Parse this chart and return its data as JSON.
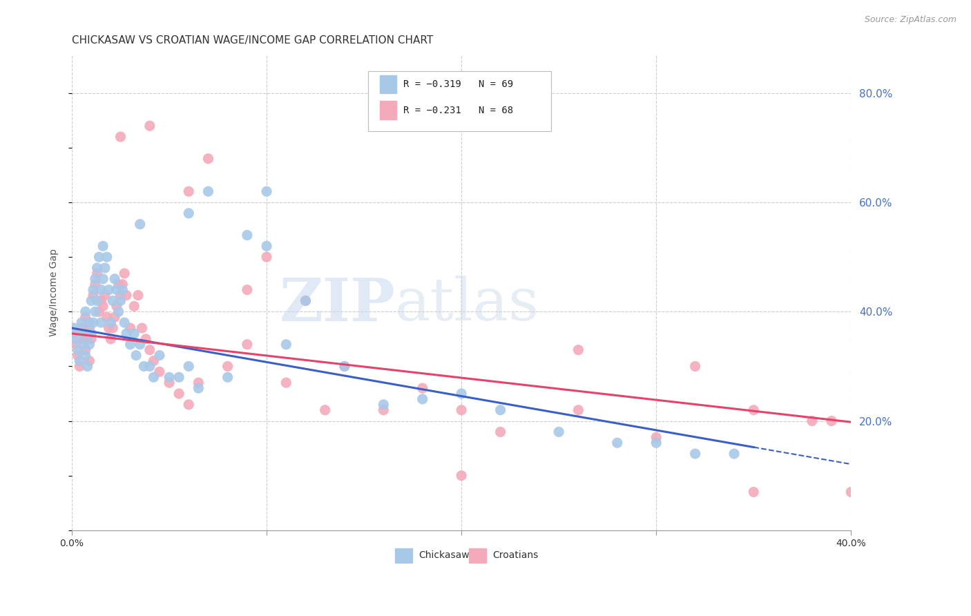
{
  "title": "CHICKASAW VS CROATIAN WAGE/INCOME GAP CORRELATION CHART",
  "source_text": "Source: ZipAtlas.com",
  "ylabel": "Wage/Income Gap",
  "watermark_zip": "ZIP",
  "watermark_atlas": "atlas",
  "xlim": [
    0.0,
    0.4
  ],
  "ylim": [
    0.0,
    0.87
  ],
  "ytick_positions": [
    0.2,
    0.4,
    0.6,
    0.8
  ],
  "ytick_labels": [
    "20.0%",
    "40.0%",
    "60.0%",
    "80.0%"
  ],
  "chickasaw_color": "#a8c8e8",
  "croatian_color": "#f4aaba",
  "chickasaw_line_color": "#3a5fc8",
  "croatian_line_color": "#e8426a",
  "legend_R1": "R = −0.319",
  "legend_N1": "N = 69",
  "legend_R2": "R = −0.231",
  "legend_N2": "N = 68",
  "line1_x0": 0.0,
  "line1_y0": 0.37,
  "line1_x1": 0.35,
  "line1_y1": 0.152,
  "line1_dash_x0": 0.35,
  "line1_dash_y0": 0.152,
  "line1_dash_x1": 0.4,
  "line1_dash_y1": 0.121,
  "line2_x0": 0.0,
  "line2_y0": 0.36,
  "line2_x1": 0.4,
  "line2_y1": 0.198,
  "chickasaw_x": [
    0.001,
    0.002,
    0.003,
    0.004,
    0.005,
    0.006,
    0.006,
    0.007,
    0.007,
    0.008,
    0.008,
    0.009,
    0.009,
    0.01,
    0.01,
    0.011,
    0.011,
    0.012,
    0.012,
    0.013,
    0.013,
    0.014,
    0.015,
    0.015,
    0.016,
    0.016,
    0.017,
    0.018,
    0.019,
    0.02,
    0.021,
    0.022,
    0.023,
    0.024,
    0.025,
    0.026,
    0.027,
    0.028,
    0.03,
    0.032,
    0.033,
    0.035,
    0.037,
    0.04,
    0.042,
    0.045,
    0.05,
    0.055,
    0.06,
    0.065,
    0.07,
    0.08,
    0.09,
    0.1,
    0.11,
    0.12,
    0.14,
    0.16,
    0.18,
    0.2,
    0.22,
    0.25,
    0.28,
    0.3,
    0.32,
    0.34,
    0.035,
    0.06,
    0.1
  ],
  "chickasaw_y": [
    0.37,
    0.35,
    0.33,
    0.31,
    0.38,
    0.36,
    0.34,
    0.4,
    0.32,
    0.36,
    0.3,
    0.38,
    0.34,
    0.42,
    0.36,
    0.44,
    0.38,
    0.46,
    0.4,
    0.48,
    0.42,
    0.5,
    0.44,
    0.38,
    0.52,
    0.46,
    0.48,
    0.5,
    0.44,
    0.38,
    0.42,
    0.46,
    0.44,
    0.4,
    0.42,
    0.44,
    0.38,
    0.36,
    0.34,
    0.36,
    0.32,
    0.34,
    0.3,
    0.3,
    0.28,
    0.32,
    0.28,
    0.28,
    0.3,
    0.26,
    0.62,
    0.28,
    0.54,
    0.52,
    0.34,
    0.42,
    0.3,
    0.23,
    0.24,
    0.25,
    0.22,
    0.18,
    0.16,
    0.16,
    0.14,
    0.14,
    0.56,
    0.58,
    0.62
  ],
  "croatian_x": [
    0.001,
    0.002,
    0.003,
    0.004,
    0.005,
    0.006,
    0.007,
    0.007,
    0.008,
    0.009,
    0.009,
    0.01,
    0.011,
    0.012,
    0.013,
    0.014,
    0.015,
    0.016,
    0.017,
    0.018,
    0.019,
    0.02,
    0.021,
    0.022,
    0.023,
    0.024,
    0.025,
    0.026,
    0.027,
    0.028,
    0.03,
    0.032,
    0.034,
    0.036,
    0.038,
    0.04,
    0.042,
    0.045,
    0.05,
    0.055,
    0.06,
    0.065,
    0.07,
    0.08,
    0.09,
    0.1,
    0.11,
    0.12,
    0.14,
    0.16,
    0.18,
    0.2,
    0.22,
    0.26,
    0.3,
    0.32,
    0.35,
    0.38,
    0.39,
    0.4,
    0.025,
    0.04,
    0.06,
    0.09,
    0.13,
    0.2,
    0.26,
    0.35
  ],
  "croatian_y": [
    0.36,
    0.34,
    0.32,
    0.3,
    0.37,
    0.35,
    0.39,
    0.33,
    0.35,
    0.37,
    0.31,
    0.35,
    0.43,
    0.45,
    0.47,
    0.4,
    0.42,
    0.41,
    0.43,
    0.39,
    0.37,
    0.35,
    0.37,
    0.39,
    0.41,
    0.45,
    0.43,
    0.45,
    0.47,
    0.43,
    0.37,
    0.41,
    0.43,
    0.37,
    0.35,
    0.33,
    0.31,
    0.29,
    0.27,
    0.25,
    0.23,
    0.27,
    0.68,
    0.3,
    0.34,
    0.5,
    0.27,
    0.42,
    0.3,
    0.22,
    0.26,
    0.22,
    0.18,
    0.22,
    0.17,
    0.3,
    0.22,
    0.2,
    0.2,
    0.07,
    0.72,
    0.74,
    0.62,
    0.44,
    0.22,
    0.1,
    0.33,
    0.07
  ],
  "background_color": "#ffffff",
  "grid_color": "#cccccc",
  "title_fontsize": 11,
  "axis_label_fontsize": 10,
  "tick_fontsize": 10,
  "source_fontsize": 9
}
